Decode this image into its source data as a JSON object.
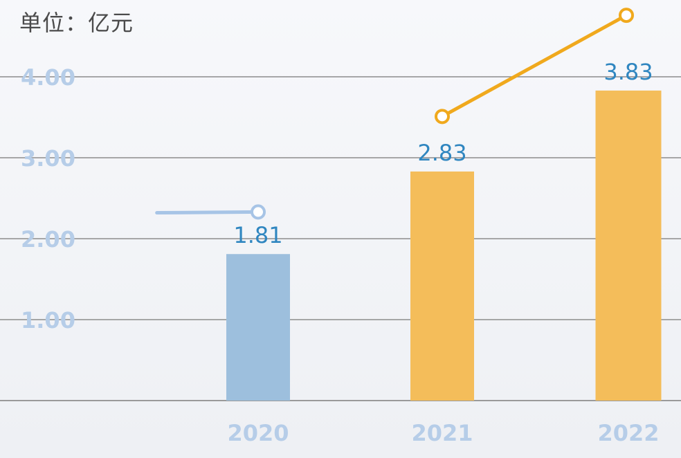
{
  "unit_label": "单位：亿元",
  "colors": {
    "bar_2020": "#9dbfdd",
    "bar_other": "#f4bd5a",
    "line_blue": "#a7c4e6",
    "line_orange": "#f0a91d",
    "tick_color": "#b6cde8",
    "data_label_color": "#2f86c0",
    "gridline": "#8c8c8c"
  },
  "chart_data": {
    "type": "bar",
    "categories": [
      "2020",
      "2021",
      "2022"
    ],
    "values": [
      1.81,
      2.83,
      3.83
    ],
    "data_labels": [
      "1.81",
      "2.83",
      "3.83"
    ],
    "y_ticks": [
      "1.00",
      "2.00",
      "3.00",
      "4.00"
    ],
    "y_tick_values": [
      1,
      2,
      3,
      4
    ],
    "ylim": [
      0,
      4
    ],
    "grid": true,
    "overlay_lines": [
      {
        "color": "blue",
        "points": [
          [
            2019.45,
            2.32
          ],
          [
            2020,
            2.33
          ]
        ]
      },
      {
        "color": "orange",
        "points": [
          [
            2021,
            3.51
          ],
          [
            2022,
            4.76
          ]
        ]
      }
    ]
  }
}
